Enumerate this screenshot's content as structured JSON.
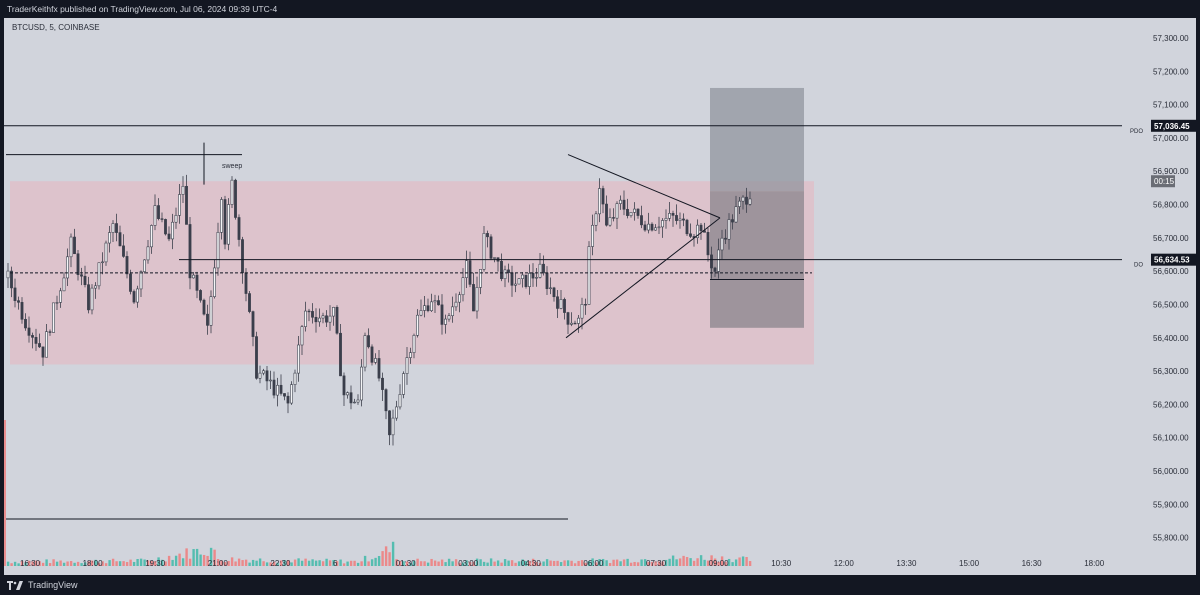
{
  "header": {
    "published_line": "TraderKeithfx published on TradingView.com, Jul 06, 2024 09:39 UTC-4"
  },
  "footer": {
    "brand": "TradingView"
  },
  "colors": {
    "background": "#d1d4dc",
    "candle_up": "#3b3f4b",
    "candle_down": "#3b3f4b",
    "range_box": "#e8b4c0",
    "position_box_top": "#8d919a",
    "position_box_bottom": "#6a6d75",
    "volume_up": "#3fb8a8",
    "volume_down": "#f07b7b"
  },
  "chart_data": {
    "type": "candlestick",
    "symbol_label": "BTCUSD, 5, COINBASE",
    "x_ticks": [
      "16:30",
      "18:00",
      "19:30",
      "21:00",
      "22:30",
      "6",
      "01:30",
      "03:00",
      "04:30",
      "06:00",
      "07:30",
      "09:00",
      "10:30",
      "12:00",
      "13:30",
      "15:00",
      "16:30",
      "18:00"
    ],
    "y_ticks": [
      "57,300.00",
      "57,200.00",
      "57,100.00",
      "57,000.00",
      "56,900.00",
      "56,800.00",
      "56,700.00",
      "56,600.00",
      "56,500.00",
      "56,400.00",
      "56,300.00",
      "56,200.00",
      "56,100.00",
      "56,000.00",
      "55,900.00",
      "55,800.00"
    ],
    "ylim": [
      55760,
      57360
    ],
    "close_path": [
      [
        0,
        56580
      ],
      [
        5,
        56450
      ],
      [
        10,
        56360
      ],
      [
        18,
        56680
      ],
      [
        23,
        56500
      ],
      [
        30,
        56740
      ],
      [
        36,
        56520
      ],
      [
        42,
        56780
      ],
      [
        46,
        56690
      ],
      [
        50,
        56860
      ],
      [
        52,
        56600
      ],
      [
        57,
        56420
      ],
      [
        61,
        56840
      ],
      [
        62,
        56700
      ],
      [
        64,
        56860
      ],
      [
        71,
        56300
      ],
      [
        75,
        56260
      ],
      [
        80,
        56200
      ],
      [
        85,
        56480
      ],
      [
        90,
        56460
      ],
      [
        93,
        56470
      ],
      [
        96,
        56230
      ],
      [
        100,
        56200
      ],
      [
        102,
        56420
      ],
      [
        106,
        56280
      ],
      [
        109,
        56100
      ],
      [
        113,
        56300
      ],
      [
        117,
        56460
      ],
      [
        121,
        56520
      ],
      [
        125,
        56440
      ],
      [
        131,
        56610
      ],
      [
        133,
        56480
      ],
      [
        136,
        56700
      ],
      [
        142,
        56580
      ],
      [
        146,
        56560
      ],
      [
        152,
        56600
      ],
      [
        156,
        56530
      ],
      [
        160,
        56460
      ],
      [
        163,
        56450
      ],
      [
        165,
        56520
      ],
      [
        166,
        56650
      ],
      [
        169,
        56860
      ],
      [
        171,
        56730
      ],
      [
        175,
        56800
      ],
      [
        183,
        56740
      ],
      [
        190,
        56760
      ],
      [
        196,
        56720
      ],
      [
        198,
        56740
      ],
      [
        200,
        56650
      ],
      [
        202,
        56600
      ],
      [
        204,
        56700
      ],
      [
        208,
        56780
      ],
      [
        212,
        56840
      ]
    ],
    "volume_path": [
      [
        0,
        0.25
      ],
      [
        40,
        0.3
      ],
      [
        58,
        1.0
      ],
      [
        60,
        0.4
      ],
      [
        100,
        0.25
      ],
      [
        110,
        1.0
      ],
      [
        112,
        0.3
      ],
      [
        170,
        0.3
      ],
      [
        200,
        0.5
      ],
      [
        212,
        0.35
      ]
    ],
    "bar_count": 213,
    "timeframe_bar": "00:15",
    "annotations": {
      "pdo": {
        "label": "PDO",
        "price": 57036.45,
        "price_label": "57,036.45"
      },
      "do": {
        "label": "DO",
        "price": 56634.53,
        "price_label": "56,634.53"
      },
      "sweep": {
        "label": "sweep",
        "price": 56950
      },
      "dashed_level": {
        "price": 56595
      },
      "range_box": {
        "top": 56870,
        "bottom": 56320
      },
      "position": {
        "entry": 56840,
        "stop": 56430,
        "target": 57150,
        "stop_line": 56575
      },
      "triangle": {
        "upper_start": 56950,
        "lower_start": 56400,
        "apex": 56760
      }
    }
  }
}
